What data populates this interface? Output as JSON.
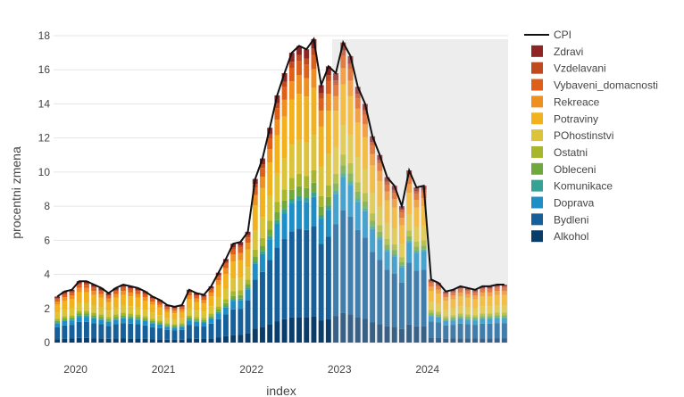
{
  "chart_data": {
    "type": "bar",
    "stacked": true,
    "xlabel": "index",
    "ylabel": "procentni zmena",
    "ylim": [
      0,
      18
    ],
    "yticks": [
      0,
      2,
      4,
      6,
      8,
      10,
      12,
      14,
      16,
      18
    ],
    "xticks": [
      "2020",
      "2021",
      "2022",
      "2023",
      "2024"
    ],
    "start_year": 2019,
    "start_month": 10,
    "shaded_from_index": 38,
    "legend": {
      "line": "CPI",
      "items": [
        "Zdravi",
        "Vzdelavani",
        "Vybaveni_domacnosti",
        "Rekreace",
        "Potraviny",
        "POhostinstvi",
        "Ostatni",
        "Obleceni",
        "Komunikace",
        "Doprava",
        "Bydleni",
        "Alkohol"
      ]
    },
    "colors": {
      "CPI": "#111111",
      "Alkohol": "#0b3d6b",
      "Bydleni": "#15609a",
      "Doprava": "#1e8fc6",
      "Komunikace": "#36a294",
      "Obleceni": "#6fa83c",
      "Ostatni": "#a8b62c",
      "POhostinstvi": "#dcc43a",
      "Potraviny": "#f2b21e",
      "Rekreace": "#ef8f20",
      "Vybaveni_domacnosti": "#de5f1a",
      "Vzdelavani": "#c04a1e",
      "Zdravi": "#8f2424"
    },
    "cpi": [
      2.7,
      3.0,
      3.1,
      3.6,
      3.6,
      3.4,
      3.2,
      2.9,
      3.2,
      3.4,
      3.3,
      3.2,
      3.0,
      2.7,
      2.5,
      2.2,
      2.1,
      2.2,
      3.1,
      2.9,
      2.8,
      3.3,
      4.1,
      4.9,
      5.8,
      5.9,
      6.5,
      9.6,
      10.8,
      12.6,
      14.5,
      15.8,
      17.0,
      17.4,
      17.2,
      17.8,
      15.1,
      16.2,
      15.8,
      17.6,
      16.8,
      15.0,
      14.0,
      12.1,
      11.0,
      9.7,
      9.2,
      8.0,
      10.1,
      9.1,
      9.2,
      3.7,
      3.5,
      3.0,
      3.1,
      3.3,
      3.2,
      3.1,
      3.3,
      3.3,
      3.4,
      3.4
    ],
    "base_share": [
      0.42,
      0.48,
      0.55,
      0.58,
      0.72,
      0.78,
      0.66
    ],
    "note": "Individual stacked component heights were estimated from the figure: each bar's total equals the CPI value, split among the 12 categories according to the category shares read from the image."
  }
}
